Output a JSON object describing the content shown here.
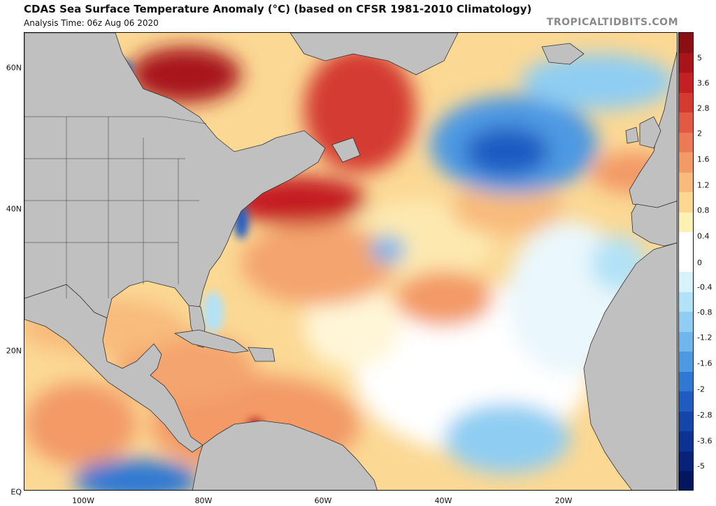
{
  "header": {
    "title": "CDAS Sea Surface Temperature Anomaly (°C) (based on CFSR 1981-2010 Climatology)",
    "analysis_time": "Analysis Time: 06z Aug 06 2020",
    "brand": "TROPICALTIDBITS.COM"
  },
  "map": {
    "lat_labels": [
      "60N",
      "40N",
      "20N",
      "EQ"
    ],
    "lon_labels": [
      "100W",
      "80W",
      "60W",
      "40W",
      "20W"
    ],
    "land_color": "#c0c0c0",
    "border_color": "#333333"
  },
  "colorbar": {
    "labels": [
      "5",
      "3.6",
      "2.8",
      "2",
      "1.6",
      "1.2",
      "0.8",
      "0.4",
      "0",
      "-0.4",
      "-0.8",
      "-1.2",
      "-1.6",
      "-2",
      "-2.8",
      "-3.6",
      "-5"
    ],
    "colors": [
      "#8b0f12",
      "#a8141a",
      "#c41f22",
      "#d43a30",
      "#e25a43",
      "#ec7a55",
      "#f39a66",
      "#f8bb7c",
      "#fcd792",
      "#fdf0b2",
      "#ffffff",
      "#ffffff",
      "#d8f2fb",
      "#b2e2f7",
      "#8fcdf2",
      "#6fb6ec",
      "#4d99e2",
      "#2f78d3",
      "#1f5cc2",
      "#1445a8",
      "#0c3394",
      "#072278",
      "#041660"
    ]
  }
}
